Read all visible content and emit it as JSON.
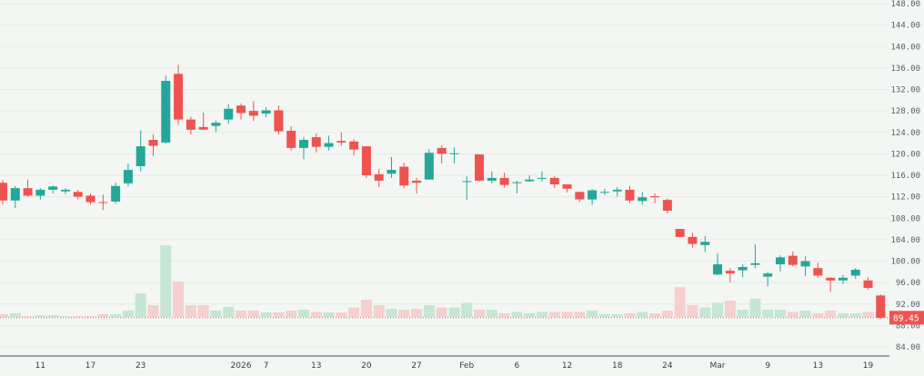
{
  "chart_data": {
    "type": "candlestick",
    "title": "",
    "xlabel": "",
    "ylabel": "",
    "ylim": [
      84,
      148
    ],
    "y_ticks": [
      "84.00",
      "88.00",
      "92.00",
      "96.00",
      "100.00",
      "104.00",
      "108.00",
      "112.00",
      "116.00",
      "120.00",
      "124.00",
      "128.00",
      "132.00",
      "136.00",
      "140.00",
      "144.00",
      "148.00"
    ],
    "x_ticks": [
      {
        "index": 3,
        "label": "11"
      },
      {
        "index": 7,
        "label": "17"
      },
      {
        "index": 11,
        "label": "23"
      },
      {
        "index": 19,
        "label": "2026"
      },
      {
        "index": 21,
        "label": "7"
      },
      {
        "index": 25,
        "label": "13"
      },
      {
        "index": 29,
        "label": "20"
      },
      {
        "index": 33,
        "label": "27"
      },
      {
        "index": 37,
        "label": "Feb"
      },
      {
        "index": 41,
        "label": "6"
      },
      {
        "index": 45,
        "label": "12"
      },
      {
        "index": 49,
        "label": "18"
      },
      {
        "index": 53,
        "label": "24"
      },
      {
        "index": 57,
        "label": "Mar"
      },
      {
        "index": 61,
        "label": "9"
      },
      {
        "index": 65,
        "label": "13"
      },
      {
        "index": 69,
        "label": "19"
      }
    ],
    "grid": true,
    "colors": {
      "up": "#26a69a",
      "down": "#ef5350",
      "up_volume": "#c5e6d3",
      "down_volume": "#f5d0cf",
      "background": "#f3f6f3"
    },
    "ohlc": [
      [
        114.6,
        115.1,
        110.5,
        111.3
      ],
      [
        111.3,
        114.0,
        109.9,
        113.6
      ],
      [
        113.6,
        115.2,
        112.0,
        112.2
      ],
      [
        112.2,
        113.6,
        111.5,
        113.3
      ],
      [
        113.3,
        114.1,
        112.6,
        113.9
      ],
      [
        113.0,
        113.6,
        112.5,
        113.3
      ],
      [
        112.9,
        113.3,
        111.5,
        112.0
      ],
      [
        112.2,
        112.6,
        110.6,
        111.0
      ],
      [
        111.0,
        112.4,
        109.5,
        110.9
      ],
      [
        111.1,
        114.6,
        110.7,
        114.0
      ],
      [
        114.5,
        118.2,
        113.9,
        117.0
      ],
      [
        117.7,
        124.4,
        116.7,
        121.4
      ],
      [
        122.6,
        123.6,
        119.6,
        121.5
      ],
      [
        122.1,
        134.6,
        121.9,
        133.6
      ],
      [
        134.9,
        136.6,
        125.4,
        126.4
      ],
      [
        126.4,
        126.9,
        123.6,
        124.5
      ],
      [
        125.0,
        127.7,
        124.4,
        124.5
      ],
      [
        125.2,
        126.2,
        124.1,
        125.8
      ],
      [
        126.4,
        129.3,
        125.6,
        128.4
      ],
      [
        129.0,
        129.4,
        126.4,
        127.6
      ],
      [
        128.0,
        129.8,
        126.1,
        127.1
      ],
      [
        127.5,
        128.7,
        126.8,
        128.1
      ],
      [
        128.1,
        129.0,
        123.6,
        124.2
      ],
      [
        124.3,
        125.1,
        120.6,
        121.1
      ],
      [
        121.1,
        123.1,
        119.0,
        122.6
      ],
      [
        123.1,
        123.8,
        120.3,
        121.3
      ],
      [
        121.3,
        123.4,
        120.6,
        122.0
      ],
      [
        122.4,
        124.0,
        121.5,
        122.1
      ],
      [
        122.3,
        122.7,
        119.7,
        120.8
      ],
      [
        121.4,
        121.4,
        115.5,
        116.0
      ],
      [
        116.2,
        117.2,
        113.8,
        115.0
      ],
      [
        116.3,
        119.4,
        115.5,
        117.0
      ],
      [
        117.6,
        118.3,
        113.6,
        114.1
      ],
      [
        115.0,
        115.5,
        112.6,
        114.6
      ],
      [
        115.2,
        120.9,
        115.2,
        120.2
      ],
      [
        121.1,
        121.6,
        118.2,
        120.0
      ],
      [
        120.0,
        121.2,
        118.2,
        120.1
      ],
      [
        114.9,
        115.8,
        111.4,
        114.9
      ],
      [
        119.9,
        119.9,
        114.8,
        115.0
      ],
      [
        115.0,
        116.7,
        114.5,
        115.5
      ],
      [
        115.5,
        116.5,
        113.7,
        114.2
      ],
      [
        114.6,
        115.0,
        112.6,
        114.7
      ],
      [
        114.9,
        116.0,
        114.8,
        115.2
      ],
      [
        115.4,
        116.7,
        114.8,
        115.5
      ],
      [
        115.5,
        115.8,
        113.6,
        114.3
      ],
      [
        114.3,
        114.3,
        112.8,
        113.5
      ],
      [
        112.9,
        112.9,
        111.0,
        111.5
      ],
      [
        111.5,
        113.4,
        110.5,
        113.2
      ],
      [
        112.9,
        113.5,
        112.3,
        112.9
      ],
      [
        113.0,
        113.8,
        112.0,
        113.3
      ],
      [
        113.3,
        114.0,
        110.8,
        111.3
      ],
      [
        111.2,
        112.9,
        110.5,
        111.9
      ],
      [
        112.1,
        112.6,
        110.8,
        111.9
      ],
      [
        111.4,
        111.6,
        108.9,
        109.4
      ],
      [
        106.0,
        106.0,
        104.4,
        104.5
      ],
      [
        104.5,
        105.3,
        102.5,
        103.2
      ],
      [
        103.0,
        104.7,
        101.7,
        103.6
      ],
      [
        97.5,
        101.4,
        97.4,
        99.4
      ],
      [
        98.2,
        98.7,
        96.0,
        97.7
      ],
      [
        98.3,
        99.4,
        97.0,
        98.9
      ],
      [
        99.3,
        103.1,
        98.7,
        99.6
      ],
      [
        97.1,
        98.0,
        95.3,
        97.7
      ],
      [
        99.4,
        101.1,
        98.1,
        100.7
      ],
      [
        101.0,
        101.8,
        99.0,
        99.3
      ],
      [
        99.0,
        100.9,
        97.2,
        100.0
      ],
      [
        98.7,
        99.7,
        96.9,
        97.3
      ],
      [
        96.9,
        97.0,
        94.3,
        96.4
      ],
      [
        96.4,
        97.4,
        95.7,
        96.9
      ],
      [
        97.3,
        98.7,
        96.7,
        98.4
      ],
      [
        96.4,
        97.0,
        94.7,
        95.0
      ],
      [
        93.6,
        93.8,
        89.2,
        89.45
      ]
    ],
    "volume": [
      3,
      4,
      1,
      2,
      2,
      1,
      1,
      1,
      3,
      3,
      7,
      26,
      13,
      79,
      39,
      13,
      13,
      7,
      11,
      7,
      7,
      5,
      5,
      7,
      8,
      5.5,
      5,
      5,
      10.5,
      19,
      13,
      9,
      8,
      9,
      13,
      10.5,
      10.5,
      15.5,
      8,
      8,
      4,
      5.5,
      4,
      5.5,
      5.5,
      5.5,
      5.5,
      7,
      3,
      3,
      4,
      5.5,
      4,
      7,
      33,
      13,
      10.5,
      15.5,
      18,
      8,
      20,
      8,
      8,
      5.5,
      7,
      4,
      7,
      4,
      4,
      5.5,
      5
    ],
    "last_price": "89.45"
  }
}
